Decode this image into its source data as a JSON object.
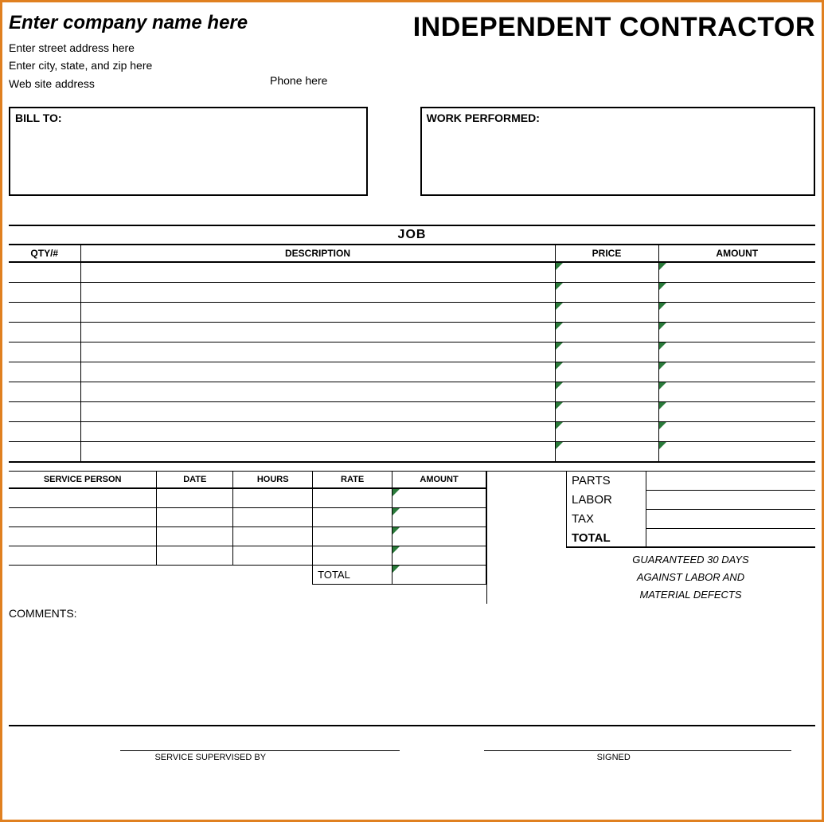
{
  "header": {
    "company_name": "Enter company name here",
    "doc_title": "INDEPENDENT CONTRACTOR",
    "street": "Enter street address here",
    "city_state_zip": "Enter city, state, and zip here",
    "phone": "Phone here",
    "website": "Web site address"
  },
  "bill_to_label": "BILL TO:",
  "work_performed_label": "WORK PERFORMED:",
  "job": {
    "title": "JOB",
    "columns": {
      "qty": "QTY/#",
      "description": "DESCRIPTION",
      "price": "PRICE",
      "amount": "AMOUNT"
    },
    "row_count": 10,
    "marker_color": "#2a7a3a"
  },
  "service": {
    "columns": {
      "person": "SERVICE PERSON",
      "date": "DATE",
      "hours": "HOURS",
      "rate": "RATE",
      "amount": "AMOUNT"
    },
    "row_count": 4,
    "total_label": "TOTAL"
  },
  "totals": {
    "parts": "PARTS",
    "labor": "LABOR",
    "tax": "TAX",
    "total": "TOTAL"
  },
  "guarantee": {
    "line1": "GUARANTEED 30 DAYS",
    "line2": "AGAINST LABOR AND",
    "line3": "MATERIAL DEFECTS"
  },
  "comments_label": "COMMENTS:",
  "signatures": {
    "supervised_by": "SERVICE SUPERVISED BY",
    "signed": "SIGNED"
  },
  "colors": {
    "border": "#e08020",
    "line": "#000000",
    "background": "#ffffff"
  }
}
